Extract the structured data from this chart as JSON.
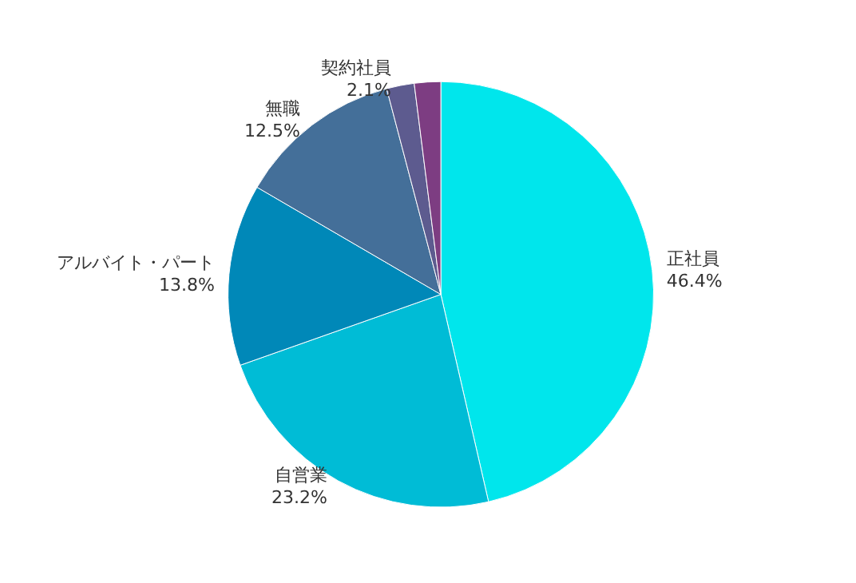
{
  "chart_data": {
    "type": "pie",
    "categories": [
      "正社員",
      "自営業",
      "アルバイト・パート",
      "無職",
      "契約社員",
      null
    ],
    "values": [
      46.4,
      23.2,
      13.8,
      12.5,
      2.1,
      2.0
    ],
    "colors": [
      "#00e6ec",
      "#00bcd6",
      "#0088b8",
      "#446f99",
      "#5d5b8f",
      "#7d3d82"
    ],
    "value_labels": [
      "46.4%",
      "23.2%",
      "13.8%",
      "12.5%",
      "2.1%",
      null
    ]
  }
}
